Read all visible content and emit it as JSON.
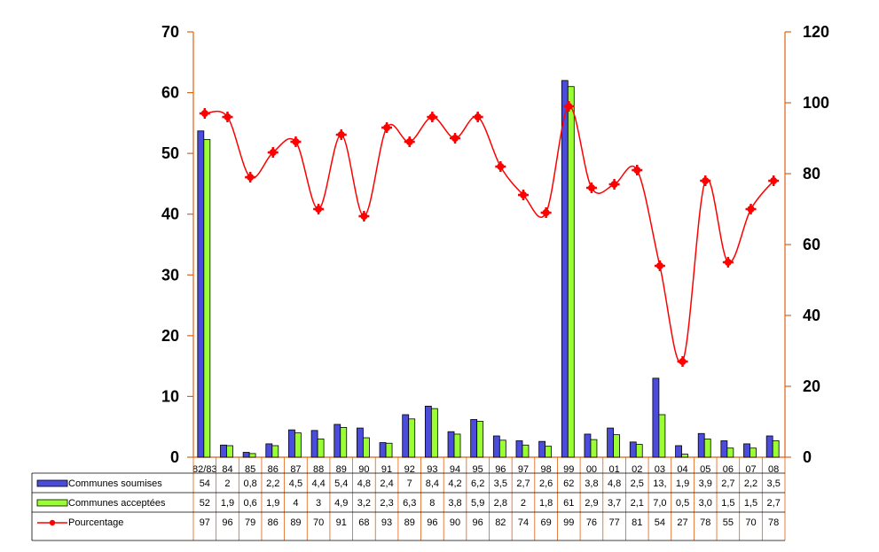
{
  "chart_data": {
    "type": "bar",
    "categories": [
      "82/83",
      "84",
      "85",
      "86",
      "87",
      "88",
      "89",
      "90",
      "91",
      "92",
      "93",
      "94",
      "95",
      "96",
      "97",
      "98",
      "99",
      "00",
      "01",
      "02",
      "03",
      "04",
      "05",
      "06",
      "07",
      "08"
    ],
    "series": [
      {
        "name": "Communes soumises",
        "type": "bar",
        "axis": "left",
        "color": "#4b4bdc",
        "values": [
          53.7,
          2.0,
          0.8,
          2.2,
          4.5,
          4.4,
          5.4,
          4.8,
          2.4,
          7.0,
          8.4,
          4.2,
          6.2,
          3.5,
          2.7,
          2.6,
          62,
          3.8,
          4.8,
          2.5,
          13,
          1.9,
          3.9,
          2.7,
          2.2,
          3.5
        ],
        "table_labels": [
          "54",
          "2",
          "0,8",
          "2,2",
          "4,5",
          "4,4",
          "5,4",
          "4,8",
          "2,4",
          "7",
          "8,4",
          "4,2",
          "6,2",
          "3,5",
          "2,7",
          "2,6",
          "62",
          "3,8",
          "4,8",
          "2,5",
          "13,",
          "1,9",
          "3,9",
          "2,7",
          "2,2",
          "3,5"
        ]
      },
      {
        "name": "Communes acceptées",
        "type": "bar",
        "axis": "left",
        "color": "#99ff33",
        "values": [
          52.3,
          1.9,
          0.6,
          1.9,
          4.0,
          3.0,
          4.9,
          3.2,
          2.3,
          6.3,
          8.0,
          3.8,
          5.9,
          2.8,
          2.0,
          1.8,
          61,
          2.9,
          3.7,
          2.1,
          7.0,
          0.5,
          3.0,
          1.5,
          1.5,
          2.7
        ],
        "table_labels": [
          "52",
          "1,9",
          "0,6",
          "1,9",
          "4",
          "3",
          "4,9",
          "3,2",
          "2,3",
          "6,3",
          "8",
          "3,8",
          "5,9",
          "2,8",
          "2",
          "1,8",
          "61",
          "2,9",
          "3,7",
          "2,1",
          "7,0",
          "0,5",
          "3,0",
          "1,5",
          "1,5",
          "2,7"
        ]
      },
      {
        "name": "Pourcentage",
        "type": "line",
        "axis": "right",
        "color": "#ff0000",
        "values": [
          97,
          96,
          79,
          86,
          89,
          70,
          91,
          68,
          93,
          89,
          96,
          90,
          96,
          82,
          74,
          69,
          99,
          76,
          77,
          81,
          54,
          27,
          78,
          55,
          70,
          78
        ],
        "table_labels": [
          "97",
          "96",
          "79",
          "86",
          "89",
          "70",
          "91",
          "68",
          "93",
          "89",
          "96",
          "90",
          "96",
          "82",
          "74",
          "69",
          "99",
          "76",
          "77",
          "81",
          "54",
          "27",
          "78",
          "55",
          "70",
          "78"
        ]
      }
    ],
    "yleft": {
      "min": 0,
      "max": 70,
      "ticks": [
        "0",
        "10",
        "20",
        "30",
        "40",
        "50",
        "60",
        "70"
      ]
    },
    "yright": {
      "min": 0,
      "max": 120,
      "ticks": [
        "0",
        "20",
        "40",
        "60",
        "80",
        "100",
        "120"
      ]
    },
    "axis_color": "#e06010",
    "grid": false,
    "legend_placement": "table-below"
  }
}
